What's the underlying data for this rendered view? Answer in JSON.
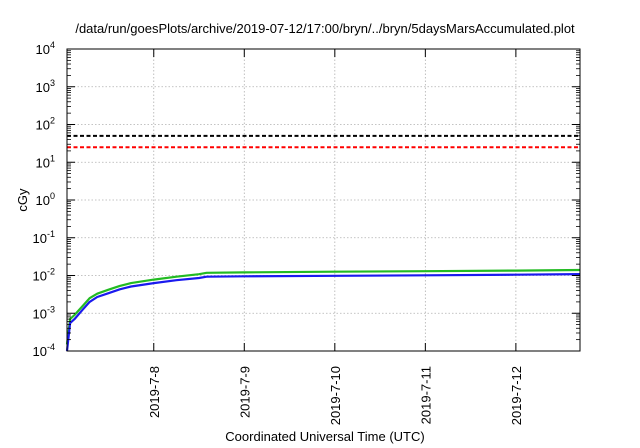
{
  "chart_data": {
    "type": "line",
    "title": "/data/run/goesPlots/archive/2019-07-12/17:00/bryn/../bryn/5daysMarsAccumulated.plot",
    "xlabel": "Coordinated Universal Time (UTC)",
    "ylabel": "cGy",
    "yscale": "log",
    "ylim": [
      0.0001,
      10000
    ],
    "xlim": [
      "2019-07-07T01:00",
      "2019-07-12T17:00"
    ],
    "grid": true,
    "x_ticks": [
      "2019-7-8",
      "2019-7-9",
      "2019-7-10",
      "2019-7-11",
      "2019-7-12"
    ],
    "y_ticks": [
      {
        "value": 0.0001,
        "base": "10",
        "exp": "-4"
      },
      {
        "value": 0.001,
        "base": "10",
        "exp": "-3"
      },
      {
        "value": 0.01,
        "base": "10",
        "exp": "-2"
      },
      {
        "value": 0.1,
        "base": "10",
        "exp": "-1"
      },
      {
        "value": 1,
        "base": "10",
        "exp": "0"
      },
      {
        "value": 10,
        "base": "10",
        "exp": "1"
      },
      {
        "value": 100,
        "base": "10",
        "exp": "2"
      },
      {
        "value": 1000,
        "base": "10",
        "exp": "3"
      },
      {
        "value": 10000,
        "base": "10",
        "exp": "4"
      }
    ],
    "reference_lines": [
      {
        "value": 50,
        "color": "#000000",
        "style": "dashed"
      },
      {
        "value": 25,
        "color": "#ff0000",
        "style": "dashed"
      }
    ],
    "series": [
      {
        "color": "#22bb22",
        "x": [
          "2019-07-07T01:00",
          "2019-07-07T01:50",
          "2019-07-07T03:00",
          "2019-07-07T05:00",
          "2019-07-07T07:00",
          "2019-07-07T09:00",
          "2019-07-07T12:00",
          "2019-07-07T15:00",
          "2019-07-07T18:00",
          "2019-07-08T00:00",
          "2019-07-08T06:00",
          "2019-07-08T12:00",
          "2019-07-08T14:00",
          "2019-07-09T00:00",
          "2019-07-10T00:00",
          "2019-07-11T00:00",
          "2019-07-12T00:00",
          "2019-07-12T17:00"
        ],
        "y": [
          0.00015,
          0.0007,
          0.0009,
          0.0015,
          0.0025,
          0.0033,
          0.0042,
          0.0053,
          0.0063,
          0.0078,
          0.0093,
          0.0108,
          0.0118,
          0.0121,
          0.0126,
          0.013,
          0.0135,
          0.014
        ]
      },
      {
        "color": "#1a1aee",
        "x": [
          "2019-07-07T01:00",
          "2019-07-07T01:50",
          "2019-07-07T03:00",
          "2019-07-07T05:00",
          "2019-07-07T07:00",
          "2019-07-07T09:00",
          "2019-07-07T12:00",
          "2019-07-07T15:00",
          "2019-07-07T18:00",
          "2019-07-08T00:00",
          "2019-07-08T06:00",
          "2019-07-08T12:00",
          "2019-07-08T14:00",
          "2019-07-09T00:00",
          "2019-07-10T00:00",
          "2019-07-11T00:00",
          "2019-07-12T00:00",
          "2019-07-12T17:00"
        ],
        "y": [
          0.0001,
          0.00055,
          0.0007,
          0.0012,
          0.002,
          0.0027,
          0.0034,
          0.0043,
          0.0051,
          0.0063,
          0.0075,
          0.0086,
          0.0093,
          0.0095,
          0.0098,
          0.0101,
          0.0105,
          0.0109
        ]
      }
    ]
  }
}
